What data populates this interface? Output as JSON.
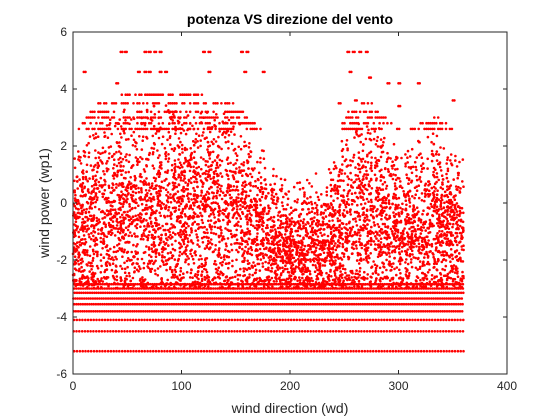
{
  "chart_data": {
    "type": "scatter",
    "title": "potenza VS direzione del vento",
    "xlabel": "wind direction (wd)",
    "ylabel": "wind power (wp1)",
    "xlim": [
      0,
      400
    ],
    "ylim": [
      -6,
      6
    ],
    "xticks": [
      "0",
      "100",
      "200",
      "300",
      "400"
    ],
    "xtick_values": [
      0,
      100,
      200,
      300,
      400
    ],
    "yticks": [
      "-6",
      "-4",
      "-2",
      "0",
      "2",
      "4",
      "6"
    ],
    "ytick_values": [
      -6,
      -4,
      -2,
      0,
      2,
      4,
      6
    ],
    "grid": false,
    "box": true,
    "marker": "dot",
    "color": "#ff0000",
    "series": [
      {
        "x_range": [
          0,
          360
        ],
        "quantized_y_levels": [
          -5.2,
          -4.5,
          -4.1,
          -3.8,
          -3.55,
          -3.35,
          -3.15,
          -3.0,
          -2.85
        ],
        "outlier_points": [
          [
            44,
            5.3
          ],
          [
            48,
            5.3
          ],
          [
            66,
            5.3
          ],
          [
            70,
            5.3
          ],
          [
            75,
            5.3
          ],
          [
            80,
            5.3
          ],
          [
            120,
            5.3
          ],
          [
            125,
            5.3
          ],
          [
            155,
            5.3
          ],
          [
            160,
            5.3
          ],
          [
            253,
            5.3
          ],
          [
            258,
            5.3
          ],
          [
            264,
            5.3
          ],
          [
            270,
            5.3
          ],
          [
            10,
            4.6
          ],
          [
            60,
            4.6
          ],
          [
            66,
            4.6
          ],
          [
            70,
            4.6
          ],
          [
            80,
            4.6
          ],
          [
            85,
            4.6
          ],
          [
            125,
            4.6
          ],
          [
            158,
            4.6
          ],
          [
            175,
            4.6
          ],
          [
            255,
            4.6
          ],
          [
            273,
            4.4
          ],
          [
            40,
            4.2
          ],
          [
            290,
            4.2
          ],
          [
            300,
            4.2
          ],
          [
            318,
            4.2
          ],
          [
            245,
            3.5
          ],
          [
            260,
            3.6
          ],
          [
            350,
            3.6
          ],
          [
            300,
            3.4
          ]
        ],
        "density_profile": [
          [
            0,
            -3.0,
            1.4
          ],
          [
            20,
            -3.0,
            2.6
          ],
          [
            40,
            -3.0,
            2.9
          ],
          [
            60,
            -3.0,
            3.2
          ],
          [
            80,
            -3.0,
            3.1
          ],
          [
            100,
            -3.0,
            3.0
          ],
          [
            120,
            -3.0,
            2.9
          ],
          [
            140,
            -3.0,
            2.8
          ],
          [
            160,
            -3.0,
            2.3
          ],
          [
            175,
            -3.0,
            1.6
          ],
          [
            190,
            -3.0,
            0.7
          ],
          [
            205,
            -3.0,
            0.4
          ],
          [
            220,
            -3.0,
            0.8
          ],
          [
            235,
            -3.0,
            1.2
          ],
          [
            245,
            -3.0,
            1.7
          ],
          [
            255,
            -3.0,
            2.4
          ],
          [
            265,
            -3.0,
            2.9
          ],
          [
            275,
            -3.0,
            2.8
          ],
          [
            290,
            -3.0,
            2.0
          ],
          [
            305,
            -3.0,
            1.6
          ],
          [
            320,
            -3.0,
            1.9
          ],
          [
            335,
            -3.0,
            2.2
          ],
          [
            350,
            -3.0,
            1.7
          ],
          [
            360,
            -3.0,
            1.6
          ]
        ]
      }
    ]
  }
}
